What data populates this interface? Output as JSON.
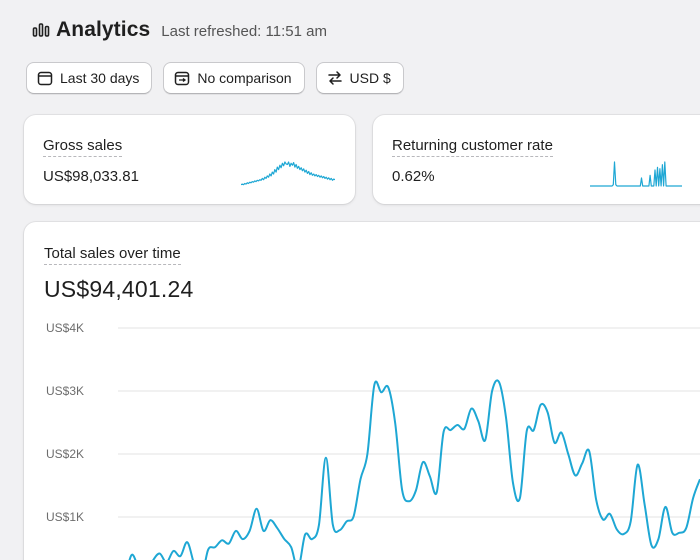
{
  "header": {
    "title": "Analytics",
    "last_refreshed": "Last refreshed: 11:51 am",
    "icon": "bar-chart-icon"
  },
  "filters": {
    "date_range": {
      "label": "Last 30 days",
      "icon": "calendar-icon"
    },
    "comparison": {
      "label": "No comparison",
      "icon": "calendar-compare-icon"
    },
    "currency": {
      "label": "USD $",
      "icon": "arrows-exchange-icon"
    }
  },
  "metrics": {
    "gross_sales": {
      "label": "Gross sales",
      "value": "US$98,033.81",
      "sparkline": [
        2,
        3,
        2,
        4,
        3,
        5,
        4,
        6,
        5,
        7,
        6,
        8,
        7,
        9,
        8,
        10,
        9,
        12,
        10,
        14,
        12,
        16,
        14,
        19,
        16,
        22,
        19,
        26,
        22,
        30,
        26,
        33,
        29,
        36,
        32,
        38,
        35,
        34,
        38,
        31,
        36,
        33,
        37,
        30,
        34,
        28,
        31,
        26,
        29,
        24,
        27,
        22,
        25,
        20,
        23,
        18,
        21,
        17,
        19,
        16,
        18,
        15,
        17,
        14,
        16,
        13,
        15,
        12,
        14,
        11,
        13,
        10,
        12,
        9,
        11,
        10
      ]
    },
    "returning_customer_rate": {
      "label": "Returning customer rate",
      "value": "0.62%",
      "sparkline": [
        0,
        0,
        0,
        0,
        0,
        0,
        0,
        0,
        0,
        0,
        0,
        0,
        0,
        0,
        0,
        0,
        0,
        0,
        0,
        1,
        18,
        1,
        0,
        0,
        0,
        0,
        0,
        0,
        0,
        0,
        0,
        0,
        0,
        0,
        0,
        0,
        0,
        0,
        0,
        0,
        0,
        0,
        6,
        0,
        0,
        0,
        0,
        0,
        0,
        8,
        0,
        0,
        0,
        12,
        0,
        14,
        0,
        13,
        0,
        16,
        0,
        18,
        0,
        0,
        0,
        0,
        0,
        0,
        0,
        0,
        0,
        0,
        0,
        0,
        0,
        0
      ]
    }
  },
  "total_sales": {
    "label": "Total sales over time",
    "value": "US$94,401.24"
  },
  "chart_data": {
    "type": "line",
    "title": "Total sales over time",
    "ylim": [
      0,
      4000
    ],
    "yticks": [
      "US$4K",
      "US$3K",
      "US$2K",
      "US$1K"
    ],
    "ytick_values": [
      4000,
      3000,
      2000,
      1000
    ],
    "grid": true,
    "color": "#1ea7d4",
    "series": [
      {
        "values": [
          0,
          60,
          400,
          180,
          50,
          300,
          420,
          280,
          460,
          380,
          600,
          250,
          20,
          480,
          520,
          630,
          580,
          780,
          650,
          780,
          1130,
          780,
          950,
          820,
          650,
          520,
          180,
          720,
          650,
          870,
          1940,
          880,
          790,
          930,
          1010,
          1600,
          2000,
          3100,
          2980,
          3060,
          2500,
          1430,
          1250,
          1420,
          1870,
          1650,
          1390,
          2350,
          2380,
          2460,
          2400,
          2720,
          2520,
          2220,
          3000,
          3140,
          2580,
          1550,
          1300,
          2370,
          2380,
          2780,
          2660,
          2180,
          2340,
          1990,
          1660,
          1850,
          2050,
          1280,
          960,
          1050,
          800,
          730,
          930,
          1830,
          1200,
          550,
          650,
          1160,
          750,
          750,
          820,
          1300,
          1600
        ]
      }
    ]
  }
}
